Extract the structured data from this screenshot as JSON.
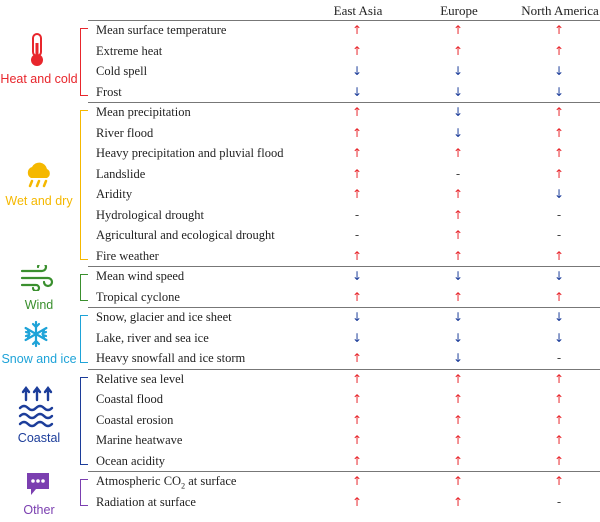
{
  "columns": [
    "East Asia",
    "Europe",
    "North America"
  ],
  "colors": {
    "up": "#e8262c",
    "down": "#1c3d9a",
    "none": "#444444"
  },
  "categories": [
    {
      "label": "Heat and cold",
      "color": "#e8262c",
      "icon": "thermometer-icon",
      "rows": [
        {
          "label": "Mean surface temperature",
          "values": [
            "up",
            "up",
            "up"
          ]
        },
        {
          "label": "Extreme heat",
          "values": [
            "up",
            "up",
            "up"
          ]
        },
        {
          "label": "Cold spell",
          "values": [
            "down",
            "down",
            "down"
          ]
        },
        {
          "label": "Frost",
          "values": [
            "down",
            "down",
            "down"
          ]
        }
      ]
    },
    {
      "label": "Wet and dry",
      "color": "#f5b800",
      "icon": "rain-cloud-icon",
      "rows": [
        {
          "label": "Mean precipitation",
          "values": [
            "up",
            "down",
            "up"
          ]
        },
        {
          "label": "River flood",
          "values": [
            "up",
            "down",
            "up"
          ]
        },
        {
          "label": "Heavy precipitation and pluvial flood",
          "values": [
            "up",
            "up",
            "up"
          ]
        },
        {
          "label": "Landslide",
          "values": [
            "up",
            "none",
            "up"
          ]
        },
        {
          "label": "Aridity",
          "values": [
            "up",
            "up",
            "down"
          ]
        },
        {
          "label": "Hydrological drought",
          "values": [
            "none",
            "up",
            "none"
          ]
        },
        {
          "label": "Agricultural and ecological drought",
          "values": [
            "none",
            "up",
            "none"
          ]
        },
        {
          "label": "Fire weather",
          "values": [
            "up",
            "up",
            "up"
          ]
        }
      ]
    },
    {
      "label": "Wind",
      "color": "#3a8f2e",
      "icon": "wind-icon",
      "rows": [
        {
          "label": "Mean wind speed",
          "values": [
            "down",
            "down",
            "down"
          ]
        },
        {
          "label": "Tropical cyclone",
          "values": [
            "up",
            "up",
            "up"
          ]
        }
      ]
    },
    {
      "label": "Snow and ice",
      "color": "#1ea3d8",
      "icon": "snowflake-icon",
      "rows": [
        {
          "label": "Snow, glacier and ice sheet",
          "values": [
            "down",
            "down",
            "down"
          ]
        },
        {
          "label": "Lake, river and sea ice",
          "values": [
            "down",
            "down",
            "down"
          ]
        },
        {
          "label": "Heavy snowfall and ice storm",
          "values": [
            "up",
            "down",
            "none"
          ]
        }
      ]
    },
    {
      "label": "Coastal",
      "color": "#1c3d9a",
      "icon": "waves-arrows-icon",
      "rows": [
        {
          "label": "Relative sea level",
          "values": [
            "up",
            "up",
            "up"
          ]
        },
        {
          "label": "Coastal flood",
          "values": [
            "up",
            "up",
            "up"
          ]
        },
        {
          "label": "Coastal erosion",
          "values": [
            "up",
            "up",
            "up"
          ]
        },
        {
          "label": "Marine heatwave",
          "values": [
            "up",
            "up",
            "up"
          ]
        },
        {
          "label": "Ocean acidity",
          "values": [
            "up",
            "up",
            "up"
          ]
        }
      ]
    },
    {
      "label": "Other",
      "color": "#7b3fb0",
      "icon": "speech-bubble-icon",
      "rows": [
        {
          "label": "Atmospheric CO",
          "sub": "2",
          "tail": " at surface",
          "values": [
            "up",
            "up",
            "up"
          ]
        },
        {
          "label": "Radiation at surface",
          "values": [
            "up",
            "up",
            "none"
          ]
        }
      ]
    }
  ]
}
